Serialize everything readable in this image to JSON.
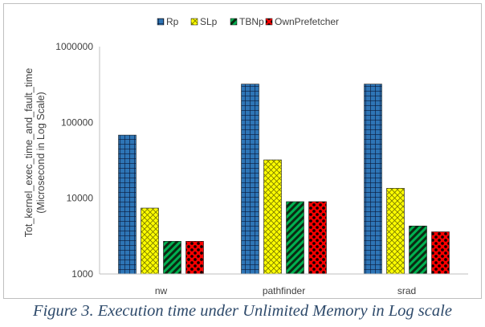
{
  "caption": "Figure 3. Execution time under Unlimited Memory in Log scale",
  "chart_data": {
    "type": "bar",
    "scale": "log",
    "title": "",
    "xlabel": "",
    "ylabel": "Tot_kernel_exec_time_and_fault_time",
    "ylabel_sub": "(Microsecond in Log Scale)",
    "ylim": [
      1000,
      1000000
    ],
    "yticks": [
      1000,
      10000,
      100000,
      1000000
    ],
    "ytick_labels": [
      "1000",
      "10000",
      "100000",
      "1000000"
    ],
    "grid": false,
    "legend_position": "top",
    "categories": [
      "nw",
      "pathfinder",
      "srad"
    ],
    "series": [
      {
        "name": "Rp",
        "values": [
          68000,
          320000,
          320000
        ],
        "color": "#2e75b6",
        "pattern": "grid"
      },
      {
        "name": "SLp",
        "values": [
          7400,
          32000,
          13500
        ],
        "color": "#ffff00",
        "pattern": "crosshatch"
      },
      {
        "name": "TBNp",
        "values": [
          2700,
          9000,
          4300
        ],
        "color": "#00b050",
        "pattern": "diagonal"
      },
      {
        "name": "OwnPrefetcher",
        "values": [
          2700,
          9000,
          3600
        ],
        "color": "#ff0000",
        "pattern": "dots"
      }
    ]
  }
}
